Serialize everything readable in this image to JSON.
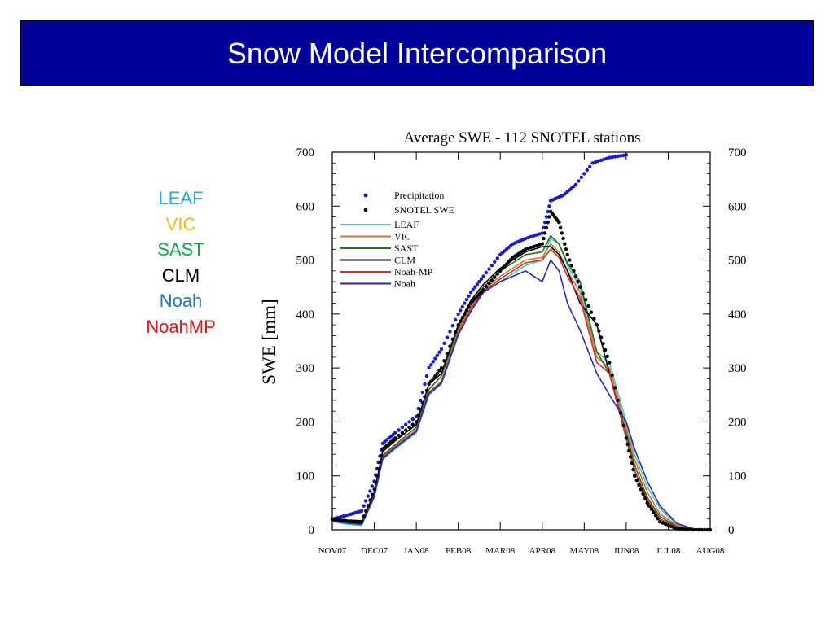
{
  "slide": {
    "title": "Snow Model Intercomparison",
    "models": [
      {
        "label": "LEAF",
        "color": "#29a9df"
      },
      {
        "label": "VIC",
        "color": "#f2b81c"
      },
      {
        "label": "SAST",
        "color": "#15a34a"
      },
      {
        "label": "CLM",
        "color": "#000000"
      },
      {
        "label": "Noah",
        "color": "#1f73b7"
      },
      {
        "label": "NoahMP",
        "color": "#e01414"
      }
    ]
  },
  "chart_data": {
    "type": "line",
    "title": "Average SWE - 112 SNOTEL stations",
    "ylabel": "SWE [mm]",
    "xlabel": "",
    "ylim": [
      0,
      700
    ],
    "xlim": [
      0,
      9
    ],
    "yticks": [
      0,
      100,
      200,
      300,
      400,
      500,
      600,
      700
    ],
    "xtick_labels": [
      "NOV07",
      "DEC07",
      "JAN08",
      "FEB08",
      "MAR08",
      "APR08",
      "MAY08",
      "JUN08",
      "JUL08",
      "AUG08"
    ],
    "grid": false,
    "legend_position": "top-left",
    "series": [
      {
        "name": "Precipitation",
        "style": "dots",
        "color": "#1a1acc",
        "x": [
          0,
          0.4,
          0.7,
          1.0,
          1.2,
          1.5,
          2.0,
          2.3,
          2.6,
          3.0,
          3.3,
          3.6,
          4.0,
          4.3,
          4.6,
          5.0,
          5.2,
          5.5,
          5.8,
          6.2,
          6.6,
          7.0
        ],
        "y": [
          20,
          28,
          35,
          90,
          160,
          180,
          210,
          300,
          335,
          400,
          440,
          470,
          510,
          530,
          540,
          550,
          610,
          620,
          640,
          680,
          690,
          695
        ]
      },
      {
        "name": "SNOTEL SWE",
        "style": "dots",
        "color": "#000000",
        "x": [
          0,
          0.4,
          0.7,
          1.0,
          1.2,
          1.5,
          2.0,
          2.3,
          2.6,
          3.0,
          3.3,
          3.6,
          4.0,
          4.3,
          4.6,
          5.0,
          5.2,
          5.4,
          5.6,
          5.9,
          6.3,
          6.6,
          7.0,
          7.2,
          7.5,
          7.8,
          8.2,
          8.6,
          9.0
        ],
        "y": [
          20,
          16,
          15,
          75,
          150,
          170,
          200,
          270,
          300,
          380,
          420,
          445,
          480,
          505,
          520,
          530,
          590,
          570,
          510,
          450,
          380,
          310,
          170,
          100,
          50,
          15,
          2,
          0,
          0
        ]
      },
      {
        "name": "LEAF",
        "style": "line",
        "color": "#4fc3c3",
        "x": [
          0,
          0.4,
          0.7,
          1.0,
          1.2,
          1.5,
          2.0,
          2.3,
          2.6,
          3.0,
          3.3,
          3.6,
          4.0,
          4.3,
          4.6,
          5.0,
          5.2,
          5.4,
          5.6,
          5.9,
          6.3,
          6.6,
          7.0,
          7.2,
          7.5,
          7.8,
          8.2,
          8.6,
          9.0
        ],
        "y": [
          15,
          10,
          8,
          60,
          130,
          150,
          180,
          250,
          270,
          360,
          410,
          440,
          460,
          475,
          490,
          500,
          540,
          530,
          490,
          450,
          330,
          310,
          200,
          140,
          80,
          40,
          10,
          2,
          0
        ]
      },
      {
        "name": "VIC",
        "style": "line",
        "color": "#cc7a30",
        "x": [
          0,
          0.4,
          0.7,
          1.0,
          1.2,
          1.5,
          2.0,
          2.3,
          2.6,
          3.0,
          3.3,
          3.6,
          4.0,
          4.3,
          4.6,
          5.0,
          5.2,
          5.4,
          5.6,
          5.9,
          6.3,
          6.6,
          7.0,
          7.2,
          7.5,
          7.8,
          8.2,
          8.6,
          9.0
        ],
        "y": [
          15,
          12,
          10,
          65,
          135,
          155,
          185,
          255,
          275,
          370,
          415,
          445,
          470,
          485,
          500,
          505,
          530,
          515,
          480,
          440,
          320,
          300,
          190,
          130,
          70,
          30,
          8,
          1,
          0
        ]
      },
      {
        "name": "SAST",
        "style": "line",
        "color": "#2e6b2e",
        "x": [
          0,
          0.4,
          0.7,
          1.0,
          1.2,
          1.5,
          2.0,
          2.3,
          2.6,
          3.0,
          3.3,
          3.6,
          4.0,
          4.3,
          4.6,
          5.0,
          5.2,
          5.4,
          5.6,
          5.9,
          6.3,
          6.6,
          7.0,
          7.2,
          7.5,
          7.8,
          8.2,
          8.6,
          9.0
        ],
        "y": [
          16,
          13,
          11,
          68,
          138,
          158,
          190,
          260,
          285,
          375,
          420,
          450,
          480,
          495,
          510,
          515,
          545,
          530,
          495,
          460,
          330,
          290,
          180,
          120,
          60,
          25,
          6,
          1,
          0
        ]
      },
      {
        "name": "CLM",
        "style": "line",
        "color": "#000000",
        "x": [
          0,
          0.4,
          0.7,
          1.0,
          1.2,
          1.5,
          2.0,
          2.3,
          2.6,
          3.0,
          3.3,
          3.6,
          4.0,
          4.3,
          4.6,
          5.0,
          5.2,
          5.4,
          5.6,
          5.9,
          6.3,
          6.6,
          7.0,
          7.2,
          7.5,
          7.8,
          8.2,
          8.6,
          9.0
        ],
        "y": [
          18,
          14,
          12,
          70,
          145,
          165,
          195,
          270,
          290,
          380,
          425,
          455,
          485,
          500,
          515,
          525,
          525,
          510,
          480,
          420,
          380,
          290,
          170,
          110,
          50,
          20,
          5,
          0,
          0
        ]
      },
      {
        "name": "Noah-MP",
        "style": "line",
        "color": "#cc3333",
        "x": [
          0,
          0.4,
          0.7,
          1.0,
          1.2,
          1.5,
          2.0,
          2.3,
          2.6,
          3.0,
          3.3,
          3.6,
          4.0,
          4.3,
          4.6,
          5.0,
          5.2,
          5.4,
          5.6,
          5.9,
          6.3,
          6.6,
          7.0,
          7.2,
          7.5,
          7.8,
          8.2,
          8.6,
          9.0
        ],
        "y": [
          16,
          12,
          10,
          64,
          134,
          154,
          184,
          254,
          274,
          365,
          410,
          442,
          465,
          480,
          495,
          500,
          520,
          505,
          470,
          430,
          310,
          290,
          170,
          110,
          55,
          20,
          5,
          0,
          0
        ]
      },
      {
        "name": "Noah",
        "style": "line",
        "color": "#2b2baa",
        "x": [
          0,
          0.4,
          0.7,
          1.0,
          1.2,
          1.5,
          2.0,
          2.3,
          2.6,
          3.0,
          3.3,
          3.6,
          4.0,
          4.3,
          4.6,
          5.0,
          5.2,
          5.4,
          5.6,
          5.9,
          6.3,
          6.6,
          7.0,
          7.2,
          7.5,
          7.8,
          8.2,
          8.6,
          9.0
        ],
        "y": [
          16,
          12,
          10,
          62,
          132,
          152,
          182,
          252,
          272,
          362,
          405,
          440,
          460,
          470,
          480,
          460,
          500,
          480,
          420,
          370,
          290,
          250,
          200,
          150,
          90,
          45,
          12,
          2,
          0
        ]
      }
    ]
  }
}
